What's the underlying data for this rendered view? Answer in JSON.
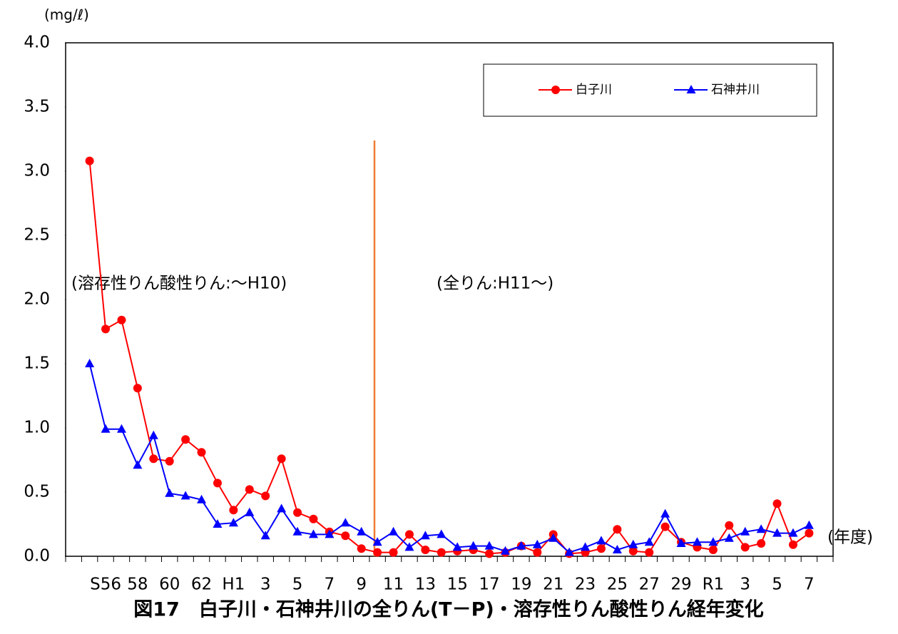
{
  "chart_data": {
    "type": "line",
    "title": "図17　白子川・石神井川の全りん(T－P)・溶存性りん酸性りん経年変化",
    "y_unit": "(mg/ℓ)",
    "x_unit": "(年度)",
    "annotations": [
      "(溶存性りん酸性りん:～H10)",
      "(全りん:H11～)"
    ],
    "categories": [
      null,
      null,
      "S56",
      null,
      "58",
      null,
      "60",
      null,
      "62",
      null,
      "H1",
      null,
      "3",
      null,
      "5",
      null,
      "7",
      null,
      "9",
      null,
      "11",
      null,
      "13",
      null,
      "15",
      null,
      "17",
      null,
      "19",
      null,
      "21",
      null,
      "23",
      null,
      "25",
      null,
      "27",
      null,
      "29",
      null,
      "R1",
      null,
      "3",
      null,
      "5",
      null,
      "7",
      null
    ],
    "series": [
      {
        "name": "白子川",
        "color": "#ff0000",
        "marker": "circle",
        "values": [
          null,
          3.08,
          1.77,
          1.84,
          1.31,
          0.76,
          0.74,
          0.91,
          0.81,
          0.57,
          0.36,
          0.52,
          0.47,
          0.76,
          0.34,
          0.29,
          0.19,
          0.16,
          0.06,
          0.03,
          0.03,
          0.17,
          0.05,
          0.03,
          0.04,
          0.05,
          0.02,
          0.03,
          0.08,
          0.03,
          0.17,
          0.02,
          0.03,
          0.06,
          0.21,
          0.04,
          0.03,
          0.23,
          0.11,
          0.07,
          0.05,
          0.24,
          0.07,
          0.1,
          0.41,
          0.09,
          0.18,
          null
        ]
      },
      {
        "name": "石神井川",
        "color": "#0000ff",
        "marker": "triangle",
        "values": [
          null,
          1.5,
          0.99,
          0.99,
          0.71,
          0.94,
          0.49,
          0.47,
          0.44,
          0.25,
          0.26,
          0.34,
          0.16,
          0.37,
          0.19,
          0.17,
          0.17,
          0.26,
          0.19,
          0.11,
          0.19,
          0.07,
          0.16,
          0.17,
          0.07,
          0.08,
          0.08,
          0.04,
          0.08,
          0.09,
          0.14,
          0.03,
          0.07,
          0.12,
          0.05,
          0.09,
          0.11,
          0.33,
          0.1,
          0.11,
          0.11,
          0.14,
          0.19,
          0.21,
          0.18,
          0.18,
          0.24,
          null
        ]
      }
    ],
    "ylim": [
      0,
      4
    ],
    "yticks": [
      {
        "value": 0,
        "label": "0.0"
      },
      0.5,
      {
        "value": 1,
        "label": "1.0"
      },
      1.5,
      {
        "value": 2,
        "label": "2.0"
      },
      2.5,
      {
        "value": 3,
        "label": "3.0"
      },
      3.5,
      {
        "value": 4,
        "label": "4.0"
      }
    ],
    "grid": false,
    "legend": "top-right"
  }
}
